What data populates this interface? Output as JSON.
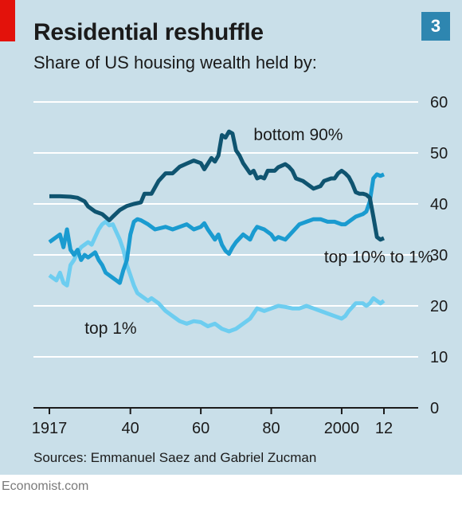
{
  "header": {
    "badge": "3",
    "title": "Residential reshuffle",
    "subtitle": "Share of US housing wealth held by:"
  },
  "footer": {
    "source": "Sources: Emmanuel Saez and Gabriel Zucman",
    "credit": "Economist.com"
  },
  "colors": {
    "background": "#c9dfe9",
    "accent_red": "#e3120b",
    "badge": "#2e86b0",
    "gridline": "#ffffff",
    "bottom_90": "#0f5470",
    "top_10_to_1": "#1a9bd0",
    "top_1": "#6dcdf0"
  },
  "chart_data": {
    "type": "line",
    "xlim": [
      1917,
      2012
    ],
    "ylim": [
      0,
      60
    ],
    "y_ticks": [
      0,
      10,
      20,
      30,
      40,
      50,
      60
    ],
    "y_tick_labels": [
      "0",
      "10",
      "20",
      "30",
      "40",
      "50",
      "60"
    ],
    "x_ticks": [
      1917,
      1940,
      1960,
      1980,
      2000,
      2012
    ],
    "x_tick_labels": [
      "1917",
      "40",
      "60",
      "80",
      "2000",
      "12"
    ],
    "grid": true,
    "series": [
      {
        "name": "bottom 90%",
        "color_key": "bottom_90",
        "label_at": [
          1975,
          52.5
        ],
        "points": [
          [
            1917,
            41.5
          ],
          [
            1920,
            41.5
          ],
          [
            1923,
            41.4
          ],
          [
            1925,
            41.2
          ],
          [
            1927,
            40.5
          ],
          [
            1928,
            39.5
          ],
          [
            1930,
            38.5
          ],
          [
            1932,
            38.0
          ],
          [
            1934,
            36.8
          ],
          [
            1935,
            37.5
          ],
          [
            1937,
            38.8
          ],
          [
            1939,
            39.6
          ],
          [
            1941,
            40.0
          ],
          [
            1943,
            40.3
          ],
          [
            1944,
            42.0
          ],
          [
            1946,
            42.0
          ],
          [
            1948,
            44.5
          ],
          [
            1950,
            46.0
          ],
          [
            1952,
            46.0
          ],
          [
            1954,
            47.3
          ],
          [
            1956,
            47.9
          ],
          [
            1958,
            48.5
          ],
          [
            1960,
            48.0
          ],
          [
            1961,
            46.8
          ],
          [
            1963,
            49.0
          ],
          [
            1964,
            48.3
          ],
          [
            1965,
            49.5
          ],
          [
            1966,
            53.5
          ],
          [
            1967,
            53.0
          ],
          [
            1968,
            54.2
          ],
          [
            1969,
            53.8
          ],
          [
            1970,
            50.5
          ],
          [
            1971,
            49.5
          ],
          [
            1972,
            48.0
          ],
          [
            1974,
            46.0
          ],
          [
            1975,
            46.5
          ],
          [
            1976,
            45.0
          ],
          [
            1977,
            45.3
          ],
          [
            1978,
            45.0
          ],
          [
            1979,
            46.5
          ],
          [
            1981,
            46.5
          ],
          [
            1982,
            47.2
          ],
          [
            1984,
            47.8
          ],
          [
            1985,
            47.3
          ],
          [
            1986,
            46.5
          ],
          [
            1987,
            45.0
          ],
          [
            1989,
            44.5
          ],
          [
            1990,
            44.0
          ],
          [
            1992,
            43.0
          ],
          [
            1994,
            43.5
          ],
          [
            1995,
            44.5
          ],
          [
            1997,
            45.0
          ],
          [
            1998,
            45.0
          ],
          [
            1999,
            46.0
          ],
          [
            2000,
            46.5
          ],
          [
            2001,
            46.0
          ],
          [
            2002,
            45.3
          ],
          [
            2003,
            44.0
          ],
          [
            2004,
            42.3
          ],
          [
            2005,
            42.0
          ],
          [
            2006,
            42.0
          ],
          [
            2007,
            41.8
          ],
          [
            2008,
            41.2
          ],
          [
            2009,
            37.5
          ],
          [
            2010,
            33.5
          ],
          [
            2011,
            33.0
          ],
          [
            2012,
            33.3
          ]
        ]
      },
      {
        "name": "top 10% to 1%",
        "color_key": "top_10_to_1",
        "label_at": [
          1995,
          28.5
        ],
        "points": [
          [
            1917,
            32.5
          ],
          [
            1918,
            33.0
          ],
          [
            1919,
            33.5
          ],
          [
            1920,
            34.0
          ],
          [
            1921,
            31.5
          ],
          [
            1922,
            35.0
          ],
          [
            1923,
            31.0
          ],
          [
            1924,
            30.0
          ],
          [
            1925,
            31.0
          ],
          [
            1926,
            29.0
          ],
          [
            1927,
            30.0
          ],
          [
            1928,
            29.5
          ],
          [
            1929,
            30.0
          ],
          [
            1930,
            30.5
          ],
          [
            1931,
            29.0
          ],
          [
            1932,
            28.0
          ],
          [
            1933,
            26.5
          ],
          [
            1934,
            26.0
          ],
          [
            1935,
            25.5
          ],
          [
            1936,
            25.0
          ],
          [
            1937,
            24.5
          ],
          [
            1938,
            27.0
          ],
          [
            1939,
            29.0
          ],
          [
            1940,
            34.0
          ],
          [
            1941,
            36.5
          ],
          [
            1942,
            37.0
          ],
          [
            1943,
            36.8
          ],
          [
            1945,
            36.0
          ],
          [
            1947,
            35.0
          ],
          [
            1950,
            35.5
          ],
          [
            1952,
            35.0
          ],
          [
            1954,
            35.5
          ],
          [
            1956,
            36.0
          ],
          [
            1958,
            35.0
          ],
          [
            1960,
            35.5
          ],
          [
            1961,
            36.2
          ],
          [
            1962,
            35.0
          ],
          [
            1963,
            34.0
          ],
          [
            1964,
            33.0
          ],
          [
            1965,
            34.0
          ],
          [
            1966,
            32.0
          ],
          [
            1967,
            30.8
          ],
          [
            1968,
            30.2
          ],
          [
            1969,
            31.5
          ],
          [
            1970,
            32.5
          ],
          [
            1972,
            34.0
          ],
          [
            1974,
            33.0
          ],
          [
            1975,
            34.5
          ],
          [
            1976,
            35.5
          ],
          [
            1978,
            35.0
          ],
          [
            1980,
            34.0
          ],
          [
            1981,
            33.0
          ],
          [
            1982,
            33.5
          ],
          [
            1984,
            33.0
          ],
          [
            1986,
            34.5
          ],
          [
            1988,
            36.0
          ],
          [
            1990,
            36.5
          ],
          [
            1992,
            37.0
          ],
          [
            1994,
            37.0
          ],
          [
            1996,
            36.5
          ],
          [
            1998,
            36.5
          ],
          [
            2000,
            36.0
          ],
          [
            2001,
            36.0
          ],
          [
            2002,
            36.5
          ],
          [
            2004,
            37.5
          ],
          [
            2006,
            38.0
          ],
          [
            2007,
            38.5
          ],
          [
            2008,
            40.5
          ],
          [
            2009,
            45.0
          ],
          [
            2010,
            45.8
          ],
          [
            2011,
            45.5
          ],
          [
            2012,
            45.8
          ]
        ]
      },
      {
        "name": "top 1%",
        "color_key": "top_1",
        "label_at": [
          1927,
          14.5
        ],
        "points": [
          [
            1917,
            26.0
          ],
          [
            1918,
            25.5
          ],
          [
            1919,
            25.0
          ],
          [
            1920,
            26.5
          ],
          [
            1921,
            24.5
          ],
          [
            1922,
            24.0
          ],
          [
            1923,
            28.0
          ],
          [
            1924,
            29.0
          ],
          [
            1925,
            30.5
          ],
          [
            1926,
            31.5
          ],
          [
            1927,
            32.0
          ],
          [
            1928,
            32.5
          ],
          [
            1929,
            32.0
          ],
          [
            1930,
            33.5
          ],
          [
            1931,
            35.0
          ],
          [
            1932,
            36.0
          ],
          [
            1933,
            36.5
          ],
          [
            1934,
            35.8
          ],
          [
            1935,
            36.0
          ],
          [
            1936,
            34.5
          ],
          [
            1937,
            33.0
          ],
          [
            1938,
            31.0
          ],
          [
            1939,
            28.0
          ],
          [
            1940,
            26.0
          ],
          [
            1941,
            24.0
          ],
          [
            1942,
            22.5
          ],
          [
            1943,
            22.0
          ],
          [
            1944,
            21.5
          ],
          [
            1945,
            21.0
          ],
          [
            1946,
            21.5
          ],
          [
            1948,
            20.5
          ],
          [
            1950,
            19.0
          ],
          [
            1952,
            18.0
          ],
          [
            1954,
            17.0
          ],
          [
            1956,
            16.5
          ],
          [
            1958,
            17.0
          ],
          [
            1960,
            16.8
          ],
          [
            1962,
            16.0
          ],
          [
            1964,
            16.5
          ],
          [
            1966,
            15.5
          ],
          [
            1968,
            15.0
          ],
          [
            1970,
            15.5
          ],
          [
            1972,
            16.5
          ],
          [
            1974,
            17.5
          ],
          [
            1976,
            19.5
          ],
          [
            1978,
            19.0
          ],
          [
            1980,
            19.5
          ],
          [
            1982,
            20.0
          ],
          [
            1984,
            19.8
          ],
          [
            1986,
            19.5
          ],
          [
            1988,
            19.5
          ],
          [
            1990,
            20.0
          ],
          [
            1992,
            19.5
          ],
          [
            1994,
            19.0
          ],
          [
            1996,
            18.5
          ],
          [
            1998,
            18.0
          ],
          [
            2000,
            17.5
          ],
          [
            2001,
            18.0
          ],
          [
            2002,
            19.0
          ],
          [
            2004,
            20.5
          ],
          [
            2006,
            20.5
          ],
          [
            2007,
            20.0
          ],
          [
            2008,
            20.5
          ],
          [
            2009,
            21.5
          ],
          [
            2010,
            21.0
          ],
          [
            2011,
            20.5
          ],
          [
            2012,
            21.0
          ]
        ]
      }
    ]
  }
}
